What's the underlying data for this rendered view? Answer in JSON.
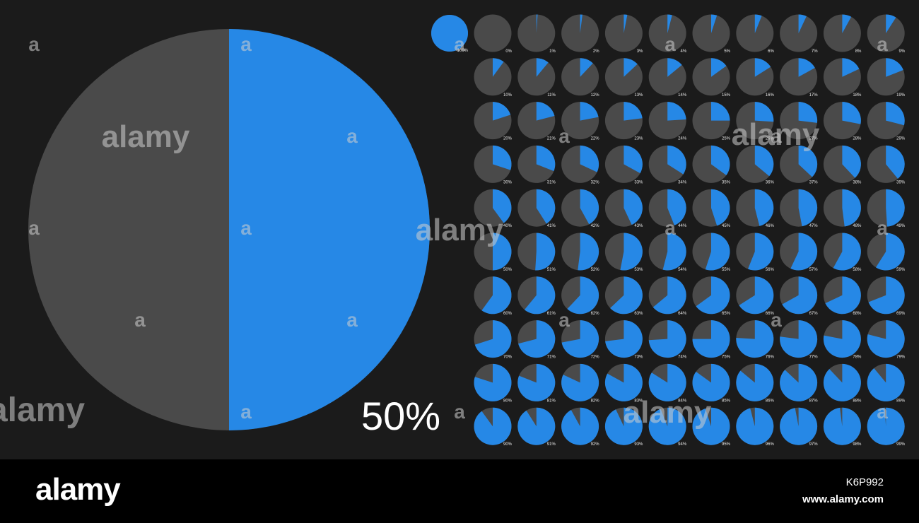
{
  "chart_data": [
    {
      "type": "pie",
      "values": [
        50,
        50
      ],
      "colors": [
        "#2688e6",
        "#4a4a4a"
      ],
      "label": "50%"
    },
    {
      "type": "pie-grid",
      "rows": 10,
      "cols": 10,
      "extra_full": {
        "value": 100,
        "label": "100%"
      },
      "values": [
        0,
        1,
        2,
        3,
        4,
        5,
        6,
        7,
        8,
        9,
        10,
        11,
        12,
        13,
        14,
        15,
        16,
        17,
        18,
        19,
        20,
        21,
        22,
        23,
        24,
        25,
        26,
        27,
        28,
        29,
        30,
        31,
        32,
        33,
        34,
        35,
        36,
        37,
        38,
        39,
        40,
        41,
        42,
        43,
        44,
        45,
        46,
        47,
        48,
        49,
        50,
        51,
        52,
        53,
        54,
        55,
        56,
        57,
        58,
        59,
        60,
        61,
        62,
        63,
        64,
        65,
        66,
        67,
        68,
        69,
        70,
        71,
        72,
        73,
        74,
        75,
        76,
        77,
        78,
        79,
        80,
        81,
        82,
        83,
        84,
        85,
        86,
        87,
        88,
        89,
        90,
        91,
        92,
        93,
        94,
        95,
        96,
        97,
        98,
        99
      ],
      "labels": [
        "0%",
        "1%",
        "2%",
        "3%",
        "4%",
        "5%",
        "6%",
        "7%",
        "8%",
        "9%",
        "10%",
        "11%",
        "12%",
        "13%",
        "14%",
        "15%",
        "16%",
        "17%",
        "18%",
        "19%",
        "20%",
        "21%",
        "22%",
        "23%",
        "24%",
        "25%",
        "26%",
        "27%",
        "28%",
        "29%",
        "30%",
        "31%",
        "32%",
        "33%",
        "34%",
        "35%",
        "36%",
        "37%",
        "38%",
        "39%",
        "40%",
        "41%",
        "42%",
        "43%",
        "44%",
        "45%",
        "46%",
        "47%",
        "48%",
        "49%",
        "50%",
        "51%",
        "52%",
        "53%",
        "54%",
        "55%",
        "56%",
        "57%",
        "58%",
        "59%",
        "60%",
        "61%",
        "62%",
        "63%",
        "64%",
        "65%",
        "66%",
        "67%",
        "68%",
        "69%",
        "70%",
        "71%",
        "72%",
        "73%",
        "74%",
        "75%",
        "76%",
        "77%",
        "78%",
        "79%",
        "80%",
        "81%",
        "82%",
        "83%",
        "84%",
        "85%",
        "86%",
        "87%",
        "88%",
        "89%",
        "90%",
        "91%",
        "92%",
        "93%",
        "94%",
        "95%",
        "96%",
        "97%",
        "98%",
        "99%"
      ],
      "fill_color": "#2688e6",
      "track_color": "#4a4a4a"
    }
  ],
  "watermark": {
    "brand": "alamy",
    "letter": "a"
  },
  "footer": {
    "logo": "alamy",
    "image_id": "K6P992",
    "url": "www.alamy.com"
  }
}
